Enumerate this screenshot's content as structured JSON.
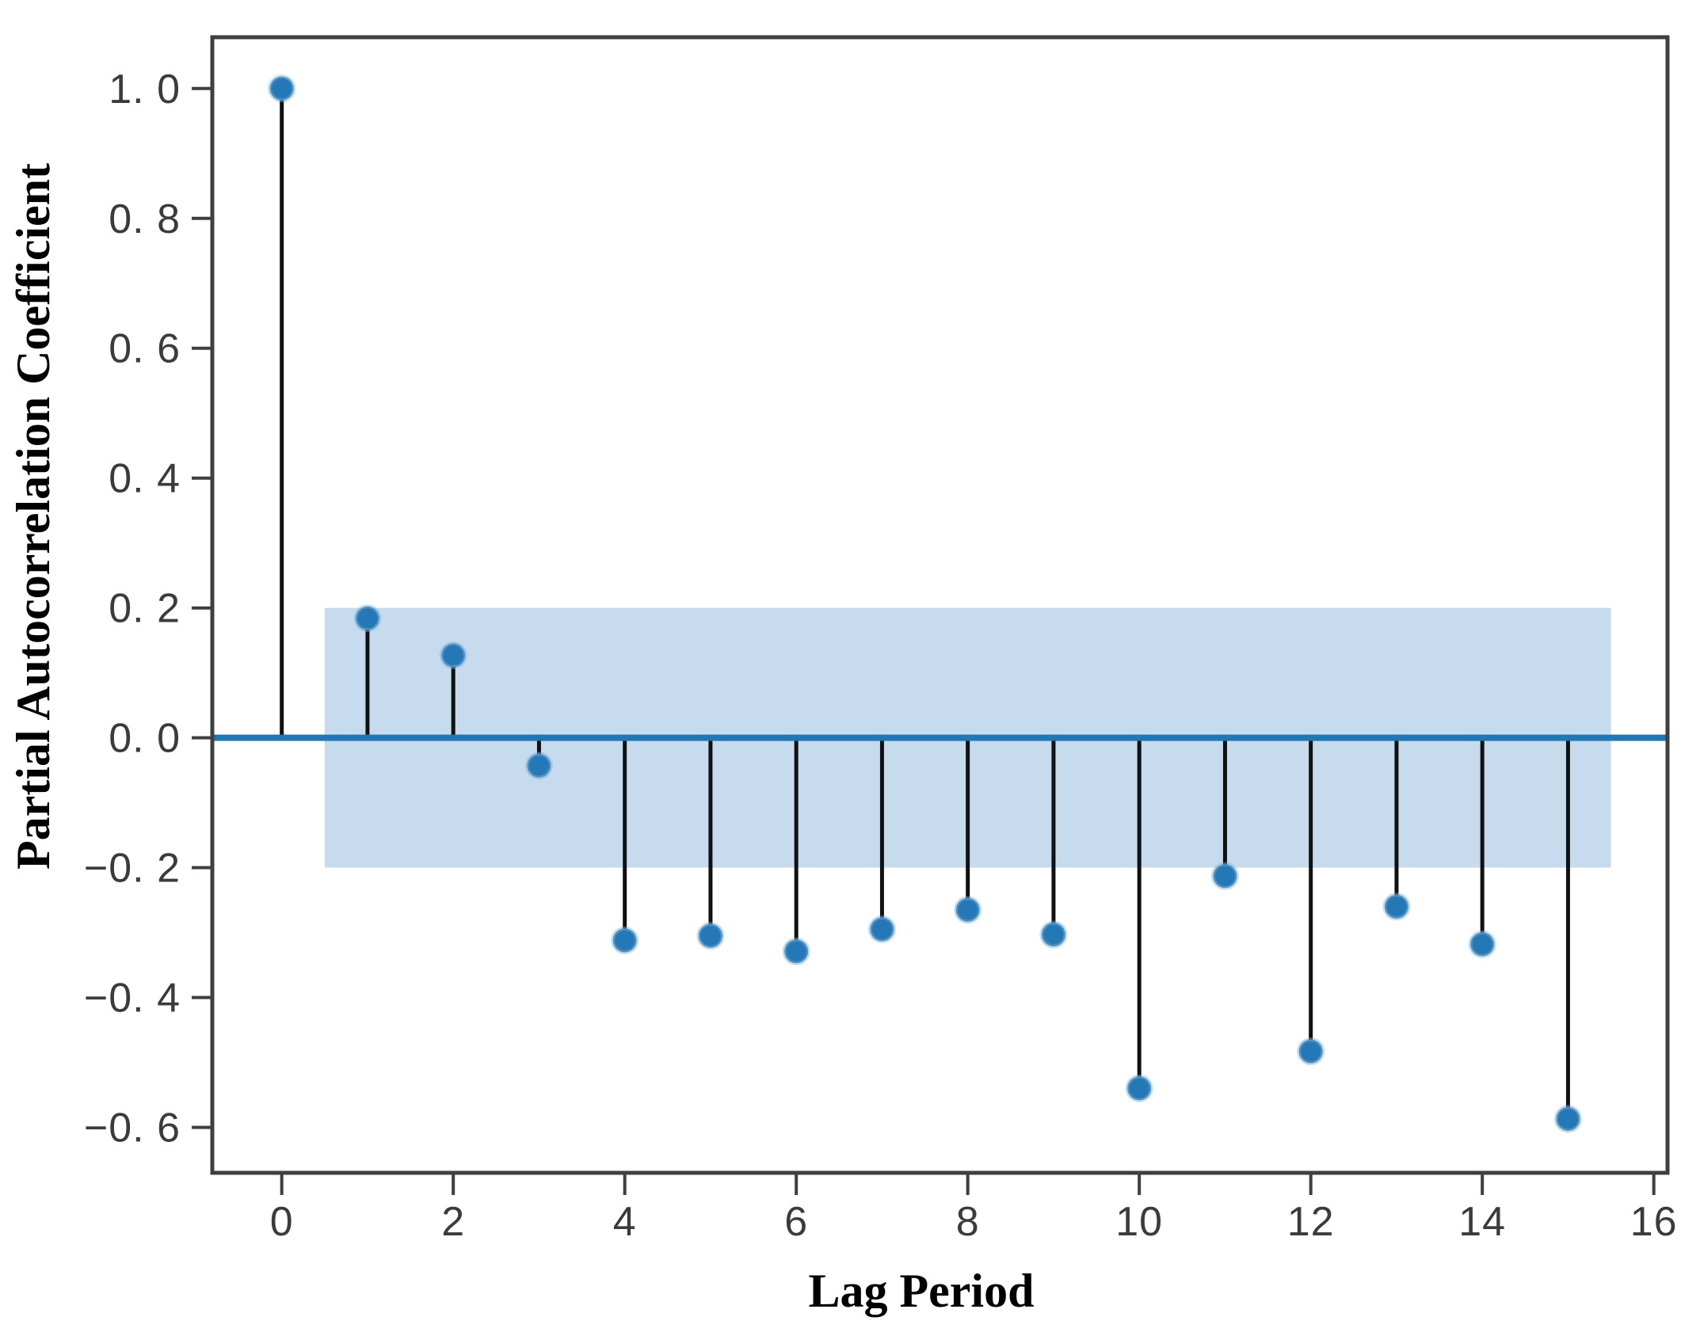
{
  "chart_data": {
    "type": "stem",
    "title": "",
    "xlabel": "Lag Period",
    "ylabel": "Partial Autocorrelation Coefficient",
    "x": [
      0,
      1,
      2,
      3,
      4,
      5,
      6,
      7,
      8,
      9,
      10,
      11,
      12,
      13,
      14,
      15
    ],
    "values": [
      1.0,
      0.184,
      0.127,
      -0.043,
      -0.312,
      -0.305,
      -0.329,
      -0.295,
      -0.265,
      -0.303,
      -0.54,
      -0.213,
      -0.483,
      -0.26,
      -0.318,
      -0.587
    ],
    "confidence_band": {
      "x_start": 0.5,
      "x_end": 15.5,
      "upper": 0.2,
      "lower": -0.2
    },
    "xlim": [
      -0.81,
      16.16
    ],
    "ylim": [
      -0.67,
      1.079
    ],
    "x_ticks": [
      0,
      2,
      4,
      6,
      8,
      10,
      12,
      14,
      16
    ],
    "x_tick_labels": [
      "0",
      "2",
      "4",
      "6",
      "8",
      "10",
      "12",
      "14",
      "16"
    ],
    "y_ticks": [
      1.0,
      0.8,
      0.6,
      0.4,
      0.2,
      0.0,
      -0.2,
      -0.4,
      -0.6
    ],
    "y_tick_labels": [
      "1. 0",
      "0. 8",
      "0. 6",
      "0. 4",
      "0. 2",
      "0. 0",
      "−0. 2",
      "−0. 4",
      "−0. 6"
    ],
    "grid": false,
    "legend": null,
    "colors": {
      "marker": "#2478b5",
      "marker_halo": "#7fb1d8",
      "stem": "#111111",
      "zero_line": "#1f77b4",
      "band": "#c6dbee",
      "spine": "#3f3f3f",
      "tick": "#3f3f3f",
      "tick_label": "#3b3b3b",
      "axis_title": "#000000"
    }
  }
}
